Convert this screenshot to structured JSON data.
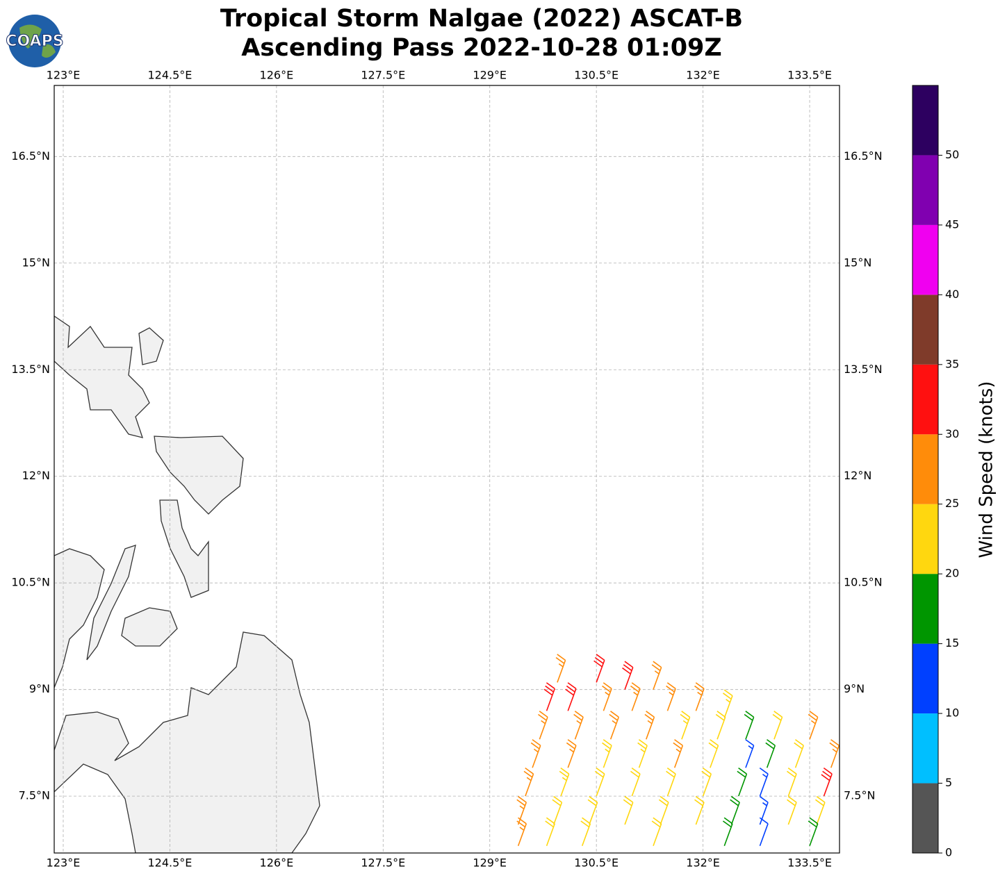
{
  "chart_data": {
    "type": "barbs",
    "title": "Tropical Storm Nalgae (2022) ASCAT-B",
    "subtitle": "Ascending Pass 2022-10-28 01:09Z",
    "logo": "COAPS",
    "xlim": [
      122.873,
      133.92
    ],
    "ylim": [
      6.7,
      17.5
    ],
    "xticks": [
      {
        "value": 123,
        "label": "123°E"
      },
      {
        "value": 124.5,
        "label": "124.5°E"
      },
      {
        "value": 126,
        "label": "126°E"
      },
      {
        "value": 127.5,
        "label": "127.5°E"
      },
      {
        "value": 129,
        "label": "129°E"
      },
      {
        "value": 130.5,
        "label": "130.5°E"
      },
      {
        "value": 132,
        "label": "132°E"
      },
      {
        "value": 133.5,
        "label": "133.5°E"
      }
    ],
    "yticks": [
      {
        "value": 7.5,
        "label": "7.5°N"
      },
      {
        "value": 9,
        "label": "9°N"
      },
      {
        "value": 10.5,
        "label": "10.5°N"
      },
      {
        "value": 12,
        "label": "12°N"
      },
      {
        "value": 13.5,
        "label": "13.5°N"
      },
      {
        "value": 15,
        "label": "15°N"
      },
      {
        "value": 16.5,
        "label": "16.5°N"
      }
    ],
    "grid": true,
    "barb_direction": 20,
    "lon": [
      129.95,
      130.5,
      130.9,
      131.3,
      129.8,
      130.1,
      130.6,
      131.0,
      131.5,
      131.9,
      132.3,
      129.7,
      130.2,
      130.7,
      131.2,
      131.7,
      132.2,
      132.6,
      133.0,
      133.5,
      129.6,
      130.1,
      130.6,
      131.1,
      131.6,
      132.1,
      132.6,
      132.9,
      133.3,
      133.8,
      129.5,
      130.0,
      130.5,
      131.0,
      131.5,
      132.0,
      132.5,
      132.8,
      133.2,
      133.7,
      129.4,
      129.9,
      130.4,
      130.9,
      131.4,
      131.9,
      132.4,
      132.8,
      133.2,
      133.6,
      129.4,
      129.8,
      130.3,
      131.3,
      132.3,
      132.8,
      133.5
    ],
    "lat": [
      9.1,
      9.1,
      9.0,
      9.0,
      8.7,
      8.7,
      8.7,
      8.7,
      8.7,
      8.7,
      8.6,
      8.3,
      8.3,
      8.3,
      8.3,
      8.3,
      8.3,
      8.3,
      8.3,
      8.3,
      7.9,
      7.9,
      7.9,
      7.9,
      7.9,
      7.9,
      7.9,
      7.9,
      7.9,
      7.9,
      7.5,
      7.5,
      7.5,
      7.5,
      7.5,
      7.5,
      7.5,
      7.5,
      7.5,
      7.5,
      7.1,
      7.1,
      7.1,
      7.1,
      7.1,
      7.1,
      7.1,
      7.1,
      7.1,
      7.1,
      6.8,
      6.8,
      6.8,
      6.8,
      6.8,
      6.8,
      6.8
    ],
    "speed": [
      27,
      32,
      32,
      27,
      32,
      32,
      27,
      27,
      27,
      27,
      24,
      27,
      27,
      27,
      27,
      24,
      22,
      18,
      22,
      27,
      27,
      27,
      24,
      24,
      27,
      22,
      14,
      18,
      22,
      27,
      27,
      24,
      22,
      22,
      22,
      22,
      18,
      14,
      22,
      32,
      27,
      22,
      22,
      22,
      22,
      22,
      18,
      14,
      22,
      22,
      27,
      22,
      22,
      22,
      18,
      12,
      18
    ],
    "colorbar": {
      "label": "Wind Speed (knots)",
      "lim": [
        0,
        55
      ],
      "bounds": [
        0,
        5,
        10,
        15,
        20,
        25,
        30,
        35,
        40,
        45,
        50,
        55
      ],
      "colors": [
        "#555555",
        "#00bfff",
        "#0040ff",
        "#009600",
        "#ffd70f",
        "#ff8c0a",
        "#ff1010",
        "#7f3b2a",
        "#f000f0",
        "#8000b0",
        "#2d0060"
      ],
      "ticks": [
        0,
        5,
        10,
        15,
        20,
        25,
        30,
        35,
        40,
        45,
        50
      ]
    }
  }
}
